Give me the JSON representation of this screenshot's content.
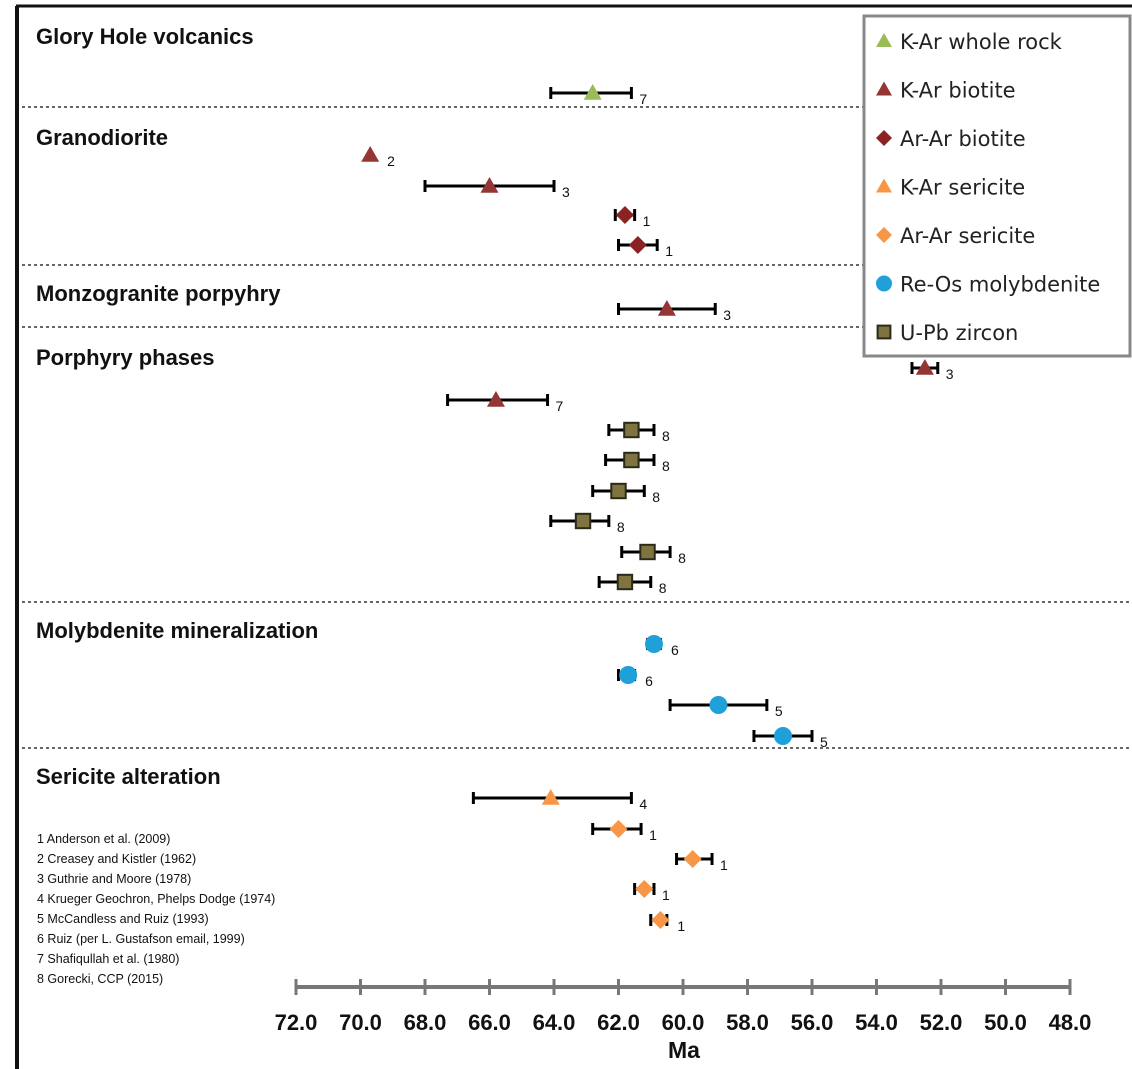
{
  "chart_data": {
    "type": "scatter",
    "xlabel": "Ma",
    "xlim": [
      72.0,
      48.0
    ],
    "x_reversed": true,
    "x_ticks": [
      "72.0",
      "70.0",
      "68.0",
      "66.0",
      "64.0",
      "62.0",
      "60.0",
      "58.0",
      "56.0",
      "54.0",
      "52.0",
      "50.0",
      "48.0"
    ],
    "legend": {
      "position": "top-right",
      "items": [
        {
          "key": "kar_whole_rock",
          "label": "K-Ar whole rock",
          "marker": "triangle",
          "color": "#9BBB59"
        },
        {
          "key": "kar_biotite",
          "label": "K-Ar biotite",
          "marker": "triangle",
          "color": "#943634"
        },
        {
          "key": "arar_biotite",
          "label": "Ar-Ar biotite",
          "marker": "diamond",
          "color": "#8B2323"
        },
        {
          "key": "kar_sericite",
          "label": "K-Ar sericite",
          "marker": "triangle",
          "color": "#F79646"
        },
        {
          "key": "arar_sericite",
          "label": "Ar-Ar sericite",
          "marker": "diamond",
          "color": "#F79646"
        },
        {
          "key": "reos_molybdenite",
          "label": "Re-Os molybdenite",
          "marker": "circle",
          "color": "#1FA0D8"
        },
        {
          "key": "upb_zircon",
          "label": "U-Pb zircon",
          "marker": "square",
          "color": "#7F7440"
        }
      ]
    },
    "groups": [
      {
        "title": "Glory Hole volcanics",
        "points": [
          {
            "series": "kar_whole_rock",
            "age": 62.8,
            "err_low": 64.1,
            "err_high": 61.6,
            "ref": "7"
          }
        ]
      },
      {
        "title": "Granodiorite",
        "points": [
          {
            "series": "kar_biotite",
            "age": 69.7,
            "err_low": null,
            "err_high": null,
            "ref": "2"
          },
          {
            "series": "kar_biotite",
            "age": 66.0,
            "err_low": 68.0,
            "err_high": 64.0,
            "ref": "3"
          },
          {
            "series": "arar_biotite",
            "age": 61.8,
            "err_low": 62.1,
            "err_high": 61.5,
            "ref": "1"
          },
          {
            "series": "arar_biotite",
            "age": 61.4,
            "err_low": 62.0,
            "err_high": 60.8,
            "ref": "1"
          }
        ]
      },
      {
        "title": "Monzogranite porpyhry",
        "points": [
          {
            "series": "kar_biotite",
            "age": 60.5,
            "err_low": 62.0,
            "err_high": 59.0,
            "ref": "3"
          }
        ]
      },
      {
        "title": "Porphyry phases",
        "points": [
          {
            "series": "kar_biotite",
            "age": 52.5,
            "err_low": 52.9,
            "err_high": 52.1,
            "ref": "3"
          },
          {
            "series": "kar_biotite",
            "age": 65.8,
            "err_low": 67.3,
            "err_high": 64.2,
            "ref": "7"
          },
          {
            "series": "upb_zircon",
            "age": 61.6,
            "err_low": 62.3,
            "err_high": 60.9,
            "ref": "8"
          },
          {
            "series": "upb_zircon",
            "age": 61.6,
            "err_low": 62.4,
            "err_high": 60.9,
            "ref": "8"
          },
          {
            "series": "upb_zircon",
            "age": 62.0,
            "err_low": 62.8,
            "err_high": 61.2,
            "ref": "8"
          },
          {
            "series": "upb_zircon",
            "age": 63.1,
            "err_low": 64.1,
            "err_high": 62.3,
            "ref": "8"
          },
          {
            "series": "upb_zircon",
            "age": 61.1,
            "err_low": 61.9,
            "err_high": 60.4,
            "ref": "8"
          },
          {
            "series": "upb_zircon",
            "age": 61.8,
            "err_low": 62.6,
            "err_high": 61.0,
            "ref": "8"
          }
        ]
      },
      {
        "title": "Molybdenite mineralization",
        "points": [
          {
            "series": "reos_molybdenite",
            "age": 60.9,
            "err_low": 61.1,
            "err_high": 60.7,
            "ref": "6"
          },
          {
            "series": "reos_molybdenite",
            "age": 61.7,
            "err_low": 62.0,
            "err_high": 61.5,
            "ref": "6"
          },
          {
            "series": "reos_molybdenite",
            "age": 58.9,
            "err_low": 60.4,
            "err_high": 57.4,
            "ref": "5"
          },
          {
            "series": "reos_molybdenite",
            "age": 56.9,
            "err_low": 57.8,
            "err_high": 56.0,
            "ref": "5"
          }
        ]
      },
      {
        "title": "Sericite alteration",
        "points": [
          {
            "series": "kar_sericite",
            "age": 64.1,
            "err_low": 66.5,
            "err_high": 61.6,
            "ref": "4"
          },
          {
            "series": "arar_sericite",
            "age": 62.0,
            "err_low": 62.8,
            "err_high": 61.3,
            "ref": "1"
          },
          {
            "series": "arar_sericite",
            "age": 59.7,
            "err_low": 60.2,
            "err_high": 59.1,
            "ref": "1"
          },
          {
            "series": "arar_sericite",
            "age": 61.2,
            "err_low": 61.5,
            "err_high": 60.9,
            "ref": "1"
          },
          {
            "series": "arar_sericite",
            "age": 60.7,
            "err_low": 61.0,
            "err_high": 60.5,
            "ref": "1"
          }
        ]
      }
    ],
    "references": [
      "1  Anderson et al. (2009)",
      "2  Creasey and Kistler (1962)",
      "3  Guthrie and Moore (1978)",
      "4  Krueger Geochron, Phelps Dodge (1974)",
      "5  McCandless and Ruiz (1993)",
      "6  Ruiz (per L. Gustafson email, 1999)",
      "7  Shafiqullah et al. (1980)",
      "8 Gorecki, CCP (2015)"
    ]
  }
}
